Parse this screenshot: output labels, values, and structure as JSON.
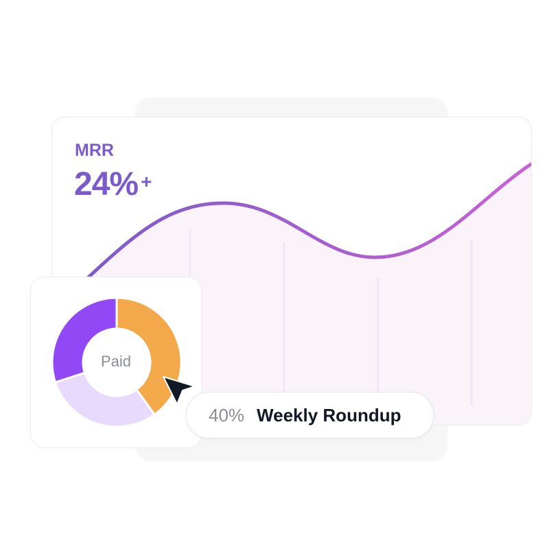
{
  "metric": {
    "label": "MRR",
    "value": "24%",
    "suffix": "+"
  },
  "trend": {
    "color_start": "#7b5bc9",
    "color_end": "#c862d4",
    "fill": "#fbf3fa"
  },
  "donut": {
    "center_label": "Paid",
    "segments": [
      {
        "share": 0.4,
        "color": "#f3a94a"
      },
      {
        "share": 0.3,
        "color": "#e8dafd"
      },
      {
        "share": 0.3,
        "color": "#9049f4"
      }
    ]
  },
  "tooltip": {
    "percent": "40%",
    "label": "Weekly Roundup"
  },
  "cursor": {
    "icon": "cursor-arrow-icon",
    "color": "#121826"
  }
}
